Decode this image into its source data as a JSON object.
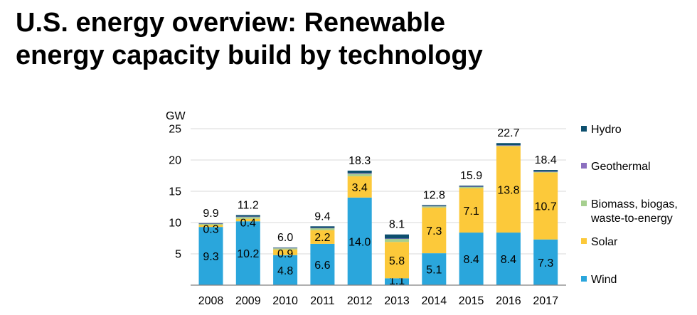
{
  "title_lines": [
    "U.S. energy overview: Renewable",
    "energy capacity build by technology"
  ],
  "colors": {
    "wind": "#2aa6dc",
    "solar": "#fcc93a",
    "biomass": "#a6cf8f",
    "geothermal": "#8b6fbf",
    "hydro": "#0d4f6e",
    "gridline": "#d9d9d9",
    "axis": "#808080",
    "text": "#000000"
  },
  "chart_data": {
    "type": "bar",
    "stacked": true,
    "title": "U.S. energy overview: Renewable energy capacity build by technology",
    "ylabel": "GW",
    "ylim": [
      0,
      25
    ],
    "yticks": [
      5,
      10,
      15,
      20,
      25
    ],
    "grid": true,
    "legend_position": "right",
    "categories": [
      "2008",
      "2009",
      "2010",
      "2011",
      "2012",
      "2013",
      "2014",
      "2015",
      "2016",
      "2017"
    ],
    "series": [
      {
        "name": "Wind",
        "key": "wind",
        "values": [
          9.3,
          10.2,
          4.8,
          6.6,
          14.0,
          1.1,
          5.1,
          8.4,
          8.4,
          7.3
        ],
        "labels": [
          "9.3",
          "10.2",
          "4.8",
          "6.6",
          "14.0",
          "1.1",
          "5.1",
          "8.4",
          "8.4",
          "7.3"
        ]
      },
      {
        "name": "Solar",
        "key": "solar",
        "values": [
          0.3,
          0.4,
          0.9,
          2.2,
          3.4,
          5.8,
          7.3,
          7.1,
          13.8,
          10.7
        ],
        "labels": [
          "0.3",
          "0.4",
          "0.9",
          "2.2",
          "3.4",
          "5.8",
          "7.3",
          "7.1",
          "13.8",
          "10.7"
        ]
      },
      {
        "name": "Biomass, biogas, waste-to-energy",
        "key": "biomass",
        "values": [
          0.2,
          0.3,
          0.2,
          0.3,
          0.4,
          0.5,
          0.2,
          0.2,
          0.1,
          0.1
        ],
        "labels": [
          "",
          "",
          "",
          "",
          "",
          "",
          "",
          "",
          "",
          ""
        ]
      },
      {
        "name": "Geothermal",
        "key": "geothermal",
        "values": [
          0.05,
          0.05,
          0.05,
          0.05,
          0.1,
          0.05,
          0.05,
          0.05,
          0.05,
          0.05
        ],
        "labels": [
          "",
          "",
          "",
          "",
          "",
          "",
          "",
          "",
          "",
          ""
        ]
      },
      {
        "name": "Hydro",
        "key": "hydro",
        "values": [
          0.05,
          0.25,
          0.05,
          0.25,
          0.4,
          0.65,
          0.15,
          0.15,
          0.35,
          0.25
        ],
        "labels": [
          "",
          "",
          "",
          "",
          "",
          "",
          "",
          "",
          "",
          ""
        ]
      }
    ],
    "totals": [
      "9.9",
      "11.2",
      "6.0",
      "9.4",
      "18.3",
      "8.1",
      "12.8",
      "15.9",
      "22.7",
      "18.4"
    ],
    "legend": [
      {
        "key": "hydro",
        "lines": [
          "Hydro"
        ]
      },
      {
        "key": "geothermal",
        "lines": [
          "Geothermal"
        ]
      },
      {
        "key": "biomass",
        "lines": [
          "Biomass, biogas,",
          "waste-to-energy"
        ]
      },
      {
        "key": "solar",
        "lines": [
          "Solar"
        ]
      },
      {
        "key": "wind",
        "lines": [
          "Wind"
        ]
      }
    ]
  }
}
